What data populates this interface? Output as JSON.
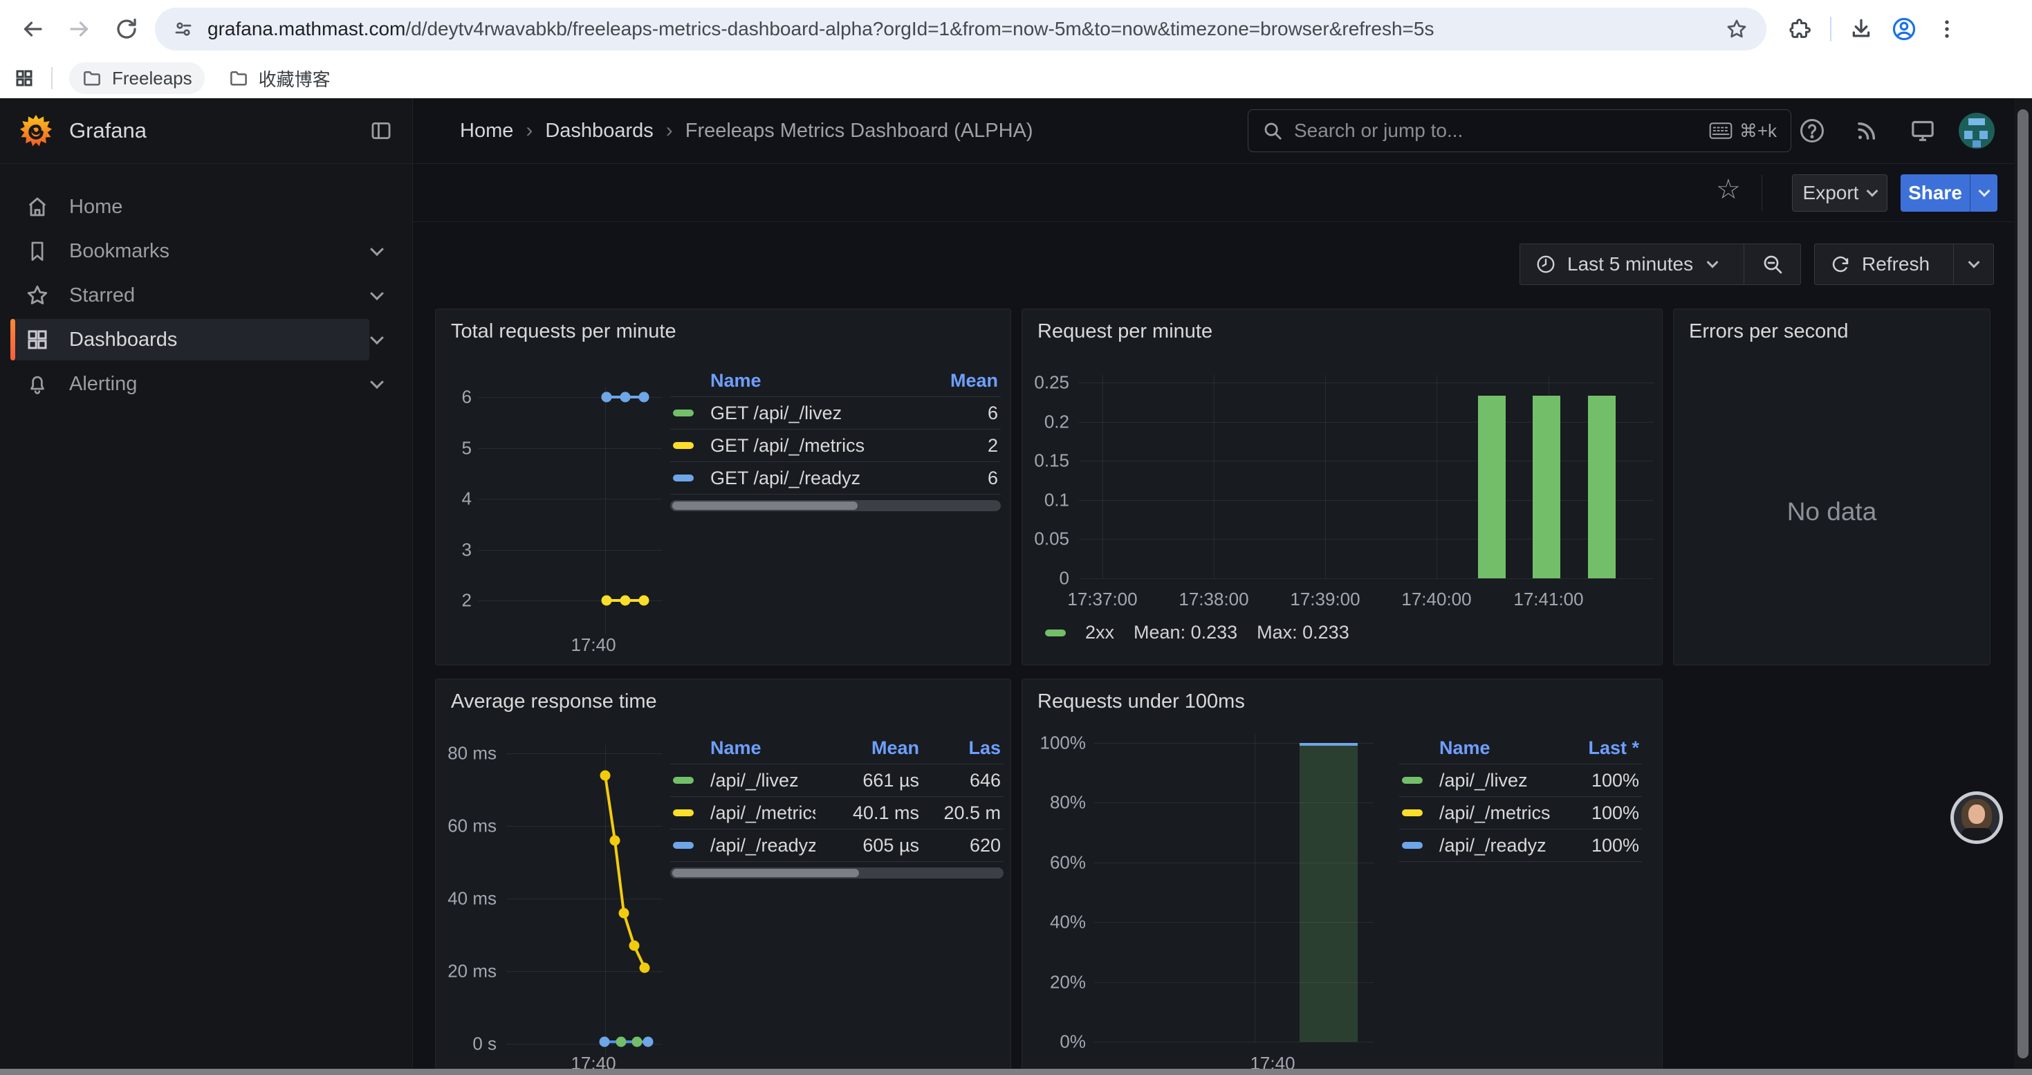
{
  "browser": {
    "url_domain": "grafana.mathmast.com",
    "url_rest": "/d/deytv4rwavabkb/freeleaps-metrics-dashboard-alpha?orgId=1&from=now-5m&to=now&timezone=browser&refresh=5s",
    "bookmarks": [
      "Freeleaps",
      "收藏博客"
    ]
  },
  "nav": {
    "brand": "Grafana",
    "breadcrumb": [
      "Home",
      "Dashboards",
      "Freeleaps Metrics Dashboard (ALPHA)"
    ],
    "separator": "›",
    "search_placeholder": "Search or jump to...",
    "search_shortcut": "⌘+k"
  },
  "sidebar": {
    "items": [
      {
        "label": "Home",
        "icon": "home-icon",
        "expandable": false,
        "active": false
      },
      {
        "label": "Bookmarks",
        "icon": "bookmark-icon",
        "expandable": true,
        "active": false
      },
      {
        "label": "Starred",
        "icon": "star-icon",
        "expandable": true,
        "active": false
      },
      {
        "label": "Dashboards",
        "icon": "apps-icon",
        "expandable": true,
        "active": true
      },
      {
        "label": "Alerting",
        "icon": "bell-icon",
        "expandable": true,
        "active": false
      }
    ]
  },
  "toolbar": {
    "export_label": "Export",
    "share_label": "Share",
    "time_range": "Last 5 minutes",
    "refresh_label": "Refresh"
  },
  "colors": {
    "accent_blue": "#3d71d9",
    "link_blue": "#6e9fff",
    "green": "#73bf69",
    "yellow": "#fade2a",
    "yellow_line": "#f2cc0c",
    "blue_series": "#6ea6e8"
  },
  "chart_data": [
    {
      "id": "total-requests-per-minute",
      "type": "line",
      "title": "Total requests per minute",
      "y_ticks": [
        "6",
        "5",
        "4",
        "3",
        "2"
      ],
      "ylim": [
        2,
        6
      ],
      "x_ticks": [
        "17:40"
      ],
      "series": [
        {
          "name": "GET /api/_/livez",
          "color": "#73bf69",
          "value": 6
        },
        {
          "name": "GET /api/_/metrics",
          "color": "#fade2a",
          "value": 2
        },
        {
          "name": "GET /api/_/readyz",
          "color": "#6ea6e8",
          "value": 6
        }
      ],
      "legend": {
        "headers": [
          "Name",
          "Mean"
        ],
        "rows": [
          {
            "name": "GET /api/_/livez",
            "color": "#73bf69",
            "values": [
              "6"
            ]
          },
          {
            "name": "GET /api/_/metrics",
            "color": "#fade2a",
            "values": [
              "2"
            ]
          },
          {
            "name": "GET /api/_/readyz",
            "color": "#6ea6e8",
            "values": [
              "6"
            ]
          }
        ],
        "has_scrollbar": true
      }
    },
    {
      "id": "request-per-minute",
      "type": "bar",
      "title": "Request per minute",
      "y_ticks": [
        "0.25",
        "0.2",
        "0.15",
        "0.1",
        "0.05",
        "0"
      ],
      "ylim": [
        0,
        0.25
      ],
      "x_ticks": [
        "17:37:00",
        "17:38:00",
        "17:39:00",
        "17:40:00",
        "17:41:00"
      ],
      "bar_color": "#73bf69",
      "bars": [
        {
          "x": "17:40:20",
          "value": 0.233
        },
        {
          "x": "17:40:50",
          "value": 0.233
        },
        {
          "x": "17:41:20",
          "value": 0.233
        }
      ],
      "legend_inline": {
        "name": "2xx",
        "color": "#73bf69",
        "stats": [
          "Mean: 0.233",
          "Max: 0.233"
        ]
      }
    },
    {
      "id": "errors-per-second",
      "type": "line",
      "title": "Errors per second",
      "message": "No data",
      "series": []
    },
    {
      "id": "average-response-time",
      "type": "line",
      "title": "Average response time",
      "y_ticks": [
        "80 ms",
        "60 ms",
        "40 ms",
        "20 ms",
        "0 s"
      ],
      "ylim_ms": [
        0,
        80
      ],
      "x_ticks": [
        "17:40"
      ],
      "series": [
        {
          "name": "/api/_/livez",
          "color": "#73bf69",
          "values_ms": [
            0.661
          ]
        },
        {
          "name": "/api/_/metrics",
          "color": "#f2cc0c",
          "values_ms": [
            74,
            56,
            36,
            27,
            21
          ]
        },
        {
          "name": "/api/_/readyz",
          "color": "#6ea6e8",
          "values_ms": [
            0.605
          ]
        }
      ],
      "legend": {
        "headers": [
          "Name",
          "Mean",
          "Las"
        ],
        "rows": [
          {
            "name": "/api/_/livez",
            "color": "#73bf69",
            "values": [
              "661 µs",
              "646"
            ]
          },
          {
            "name": "/api/_/metrics",
            "color": "#fade2a",
            "values": [
              "40.1 ms",
              "20.5 m"
            ]
          },
          {
            "name": "/api/_/readyz",
            "color": "#6ea6e8",
            "values": [
              "605 µs",
              "620"
            ]
          }
        ],
        "has_scrollbar": true
      }
    },
    {
      "id": "requests-under-100ms",
      "type": "area",
      "title": "Requests under 100ms",
      "y_ticks": [
        "100%",
        "80%",
        "60%",
        "40%",
        "20%",
        "0%"
      ],
      "ylim_pct": [
        0,
        100
      ],
      "x_ticks": [
        "17:40"
      ],
      "area": {
        "value_pct": 100,
        "fill": "rgba(115,191,105,0.22)",
        "edge": "#6ea6e8"
      },
      "legend": {
        "headers": [
          "Name",
          "Last *"
        ],
        "rows": [
          {
            "name": "/api/_/livez",
            "color": "#73bf69",
            "values": [
              "100%"
            ]
          },
          {
            "name": "/api/_/metrics",
            "color": "#fade2a",
            "values": [
              "100%"
            ]
          },
          {
            "name": "/api/_/readyz",
            "color": "#6ea6e8",
            "values": [
              "100%"
            ]
          }
        ],
        "has_scrollbar": false
      }
    }
  ]
}
